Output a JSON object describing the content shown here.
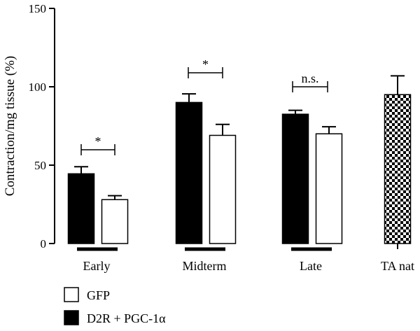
{
  "chart_data": {
    "type": "bar",
    "title": "",
    "xlabel": "",
    "ylabel": "Contraction/mg tissue (%)",
    "ylim": [
      0,
      150
    ],
    "yticks": [
      0,
      50,
      100,
      150
    ],
    "grid": false,
    "legend_position": "bottom-left",
    "categories": [
      "Early",
      "Midterm",
      "Late",
      "TA nat"
    ],
    "series": [
      {
        "name": "D2R + PGC-1α",
        "color": "#000000",
        "values": [
          44.5,
          90,
          82.5,
          null
        ],
        "errors": [
          4.5,
          5.5,
          2.5,
          null
        ]
      },
      {
        "name": "GFP",
        "color": "#ffffff",
        "values": [
          28,
          69,
          70,
          null
        ],
        "errors": [
          2.5,
          7,
          4.5,
          null
        ]
      },
      {
        "name": "",
        "pattern": "checkerboard",
        "values": [
          null,
          null,
          null,
          95
        ],
        "errors": [
          null,
          null,
          null,
          12
        ]
      }
    ],
    "annotations": [
      {
        "text": "*",
        "category": "Early"
      },
      {
        "text": "*",
        "category": "Midterm"
      },
      {
        "text": "n.s.",
        "category": "Late"
      }
    ],
    "legend": [
      {
        "label": "GFP",
        "swatch": "white"
      },
      {
        "label": "D2R + PGC-1α",
        "swatch": "black"
      }
    ]
  }
}
